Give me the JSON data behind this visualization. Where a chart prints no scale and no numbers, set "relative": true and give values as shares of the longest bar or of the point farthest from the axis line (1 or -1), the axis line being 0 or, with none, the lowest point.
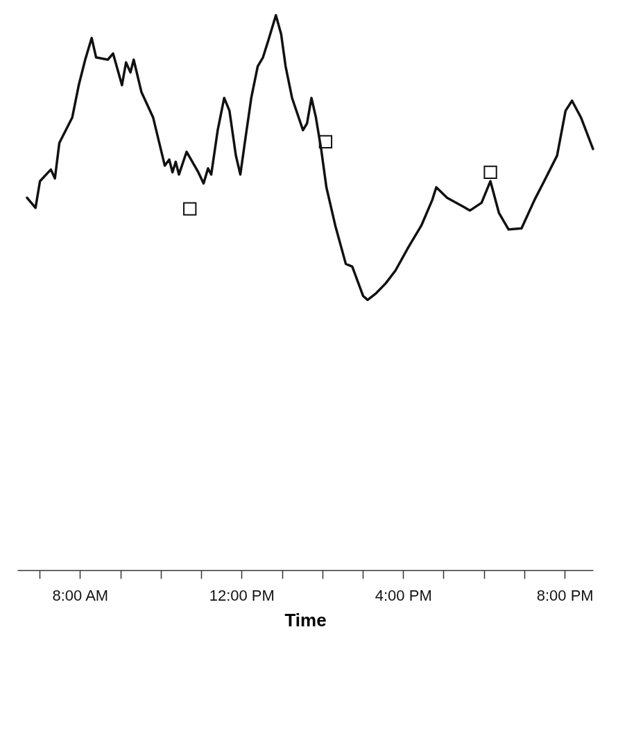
{
  "chart_data": {
    "type": "line",
    "relative": true,
    "xlabel": "Time",
    "xlim": [
      6.45,
      20.7
    ],
    "xticks": [
      {
        "value": 7,
        "label": null
      },
      {
        "value": 8,
        "label": "8:00 AM"
      },
      {
        "value": 9,
        "label": null
      },
      {
        "value": 10,
        "label": null
      },
      {
        "value": 11,
        "label": null
      },
      {
        "value": 12,
        "label": "12:00 PM"
      },
      {
        "value": 13,
        "label": null
      },
      {
        "value": 14,
        "label": null
      },
      {
        "value": 15,
        "label": null
      },
      {
        "value": 16,
        "label": "4:00 PM"
      },
      {
        "value": 17,
        "label": null
      },
      {
        "value": 18,
        "label": null
      },
      {
        "value": 19,
        "label": null
      },
      {
        "value": 20,
        "label": "8:00 PM"
      }
    ],
    "series": [
      {
        "type": "line",
        "color": "#111111",
        "marker": "none",
        "line_style": "solid",
        "x": [
          6.69,
          6.9,
          7.01,
          7.28,
          7.38,
          7.49,
          7.81,
          7.97,
          8.13,
          8.29,
          8.4,
          8.69,
          8.82,
          9.04,
          9.14,
          9.25,
          9.33,
          9.52,
          9.81,
          10.1,
          10.21,
          10.29,
          10.37,
          10.45,
          10.64,
          10.93,
          11.06,
          11.17,
          11.25,
          11.41,
          11.57,
          11.7,
          11.86,
          11.97,
          12.08,
          12.24,
          12.4,
          12.53,
          12.66,
          12.85,
          12.98,
          13.09,
          13.25,
          13.52,
          13.62,
          13.73,
          13.84,
          13.97,
          14.1,
          14.32,
          14.58,
          14.74,
          15.01,
          15.12,
          15.33,
          15.57,
          15.81,
          16.13,
          16.45,
          16.72,
          16.82,
          17.09,
          17.49,
          17.65,
          17.94,
          18.16,
          18.37,
          18.61,
          18.93,
          19.25,
          19.49,
          19.81,
          20.02,
          20.18,
          20.4,
          20.7
        ],
        "values": [
          0.671,
          0.653,
          0.701,
          0.722,
          0.706,
          0.77,
          0.816,
          0.874,
          0.92,
          0.959,
          0.924,
          0.92,
          0.931,
          0.874,
          0.915,
          0.897,
          0.92,
          0.862,
          0.816,
          0.729,
          0.74,
          0.717,
          0.736,
          0.713,
          0.754,
          0.717,
          0.697,
          0.724,
          0.713,
          0.793,
          0.851,
          0.828,
          0.747,
          0.713,
          0.77,
          0.851,
          0.908,
          0.924,
          0.954,
          1,
          0.966,
          0.908,
          0.851,
          0.793,
          0.805,
          0.851,
          0.816,
          0.759,
          0.69,
          0.621,
          0.552,
          0.547,
          0.494,
          0.487,
          0.499,
          0.517,
          0.54,
          0.582,
          0.621,
          0.667,
          0.69,
          0.671,
          0.655,
          0.648,
          0.662,
          0.701,
          0.644,
          0.614,
          0.616,
          0.667,
          0.701,
          0.747,
          0.828,
          0.846,
          0.816,
          0.759
        ]
      },
      {
        "type": "scatter",
        "color": "#111111",
        "marker": "square",
        "x": [
          10.72,
          14.08,
          18.16
        ],
        "values": [
          0.651,
          0.772,
          0.717
        ]
      }
    ]
  }
}
